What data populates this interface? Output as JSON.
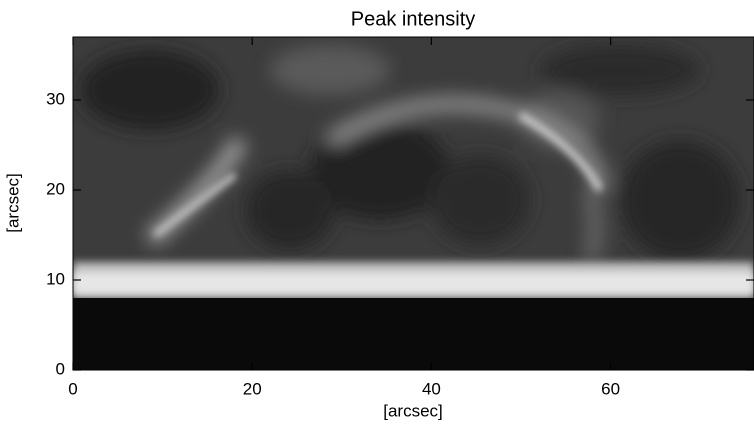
{
  "chart_data": {
    "type": "image",
    "title": "Peak intensity",
    "x_label": "[arcsec]",
    "y_label": "[arcsec]",
    "xlim": [
      0,
      76
    ],
    "ylim": [
      0,
      37
    ],
    "xticks": [
      0,
      20,
      40,
      60
    ],
    "yticks": [
      0,
      10,
      20,
      30
    ],
    "colormap": "gray"
  }
}
